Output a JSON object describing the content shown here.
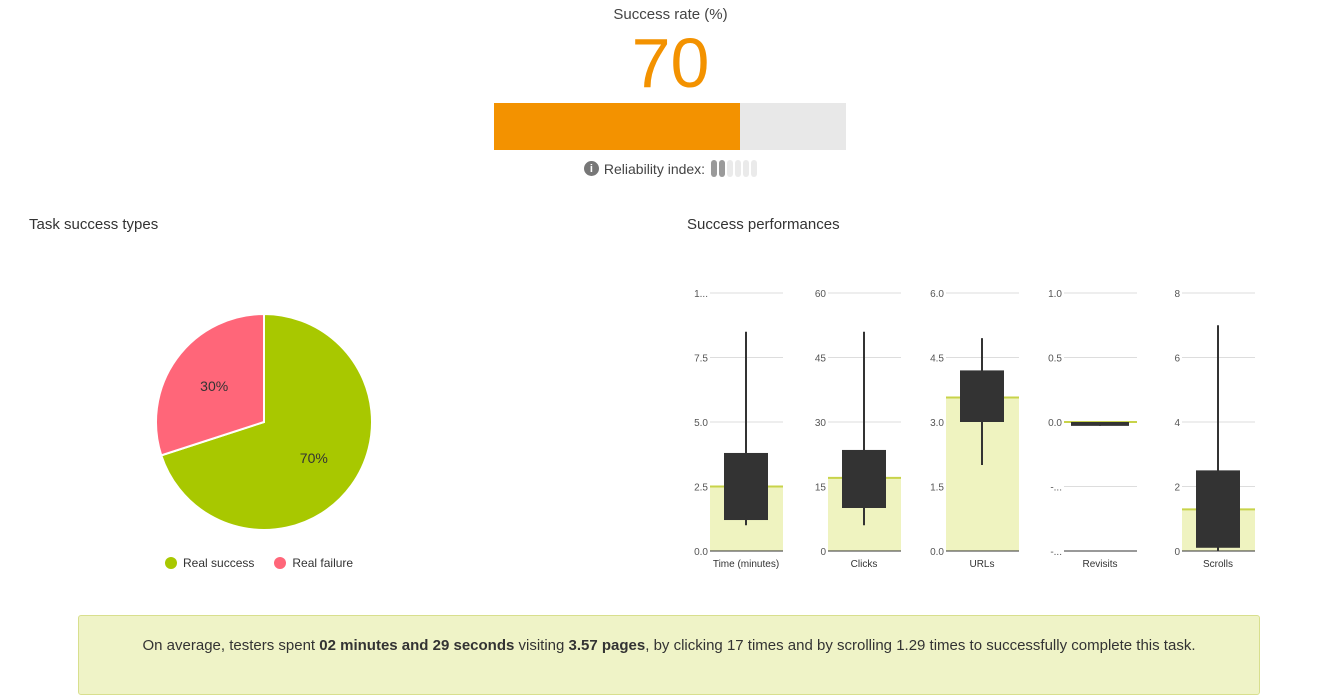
{
  "success_rate": {
    "title": "Success rate (%)",
    "value": "70",
    "fraction": 0.7,
    "color": "#f39200",
    "reliability_label": "Reliability index:",
    "reliability_level": 2,
    "reliability_max": 6
  },
  "task_types": {
    "title": "Task success types",
    "legend": [
      {
        "label": "Real success",
        "color": "#a8c800"
      },
      {
        "label": "Real failure",
        "color": "#ff6679"
      }
    ]
  },
  "performances": {
    "title": "Success performances"
  },
  "summary": {
    "p1": "On average, testers spent ",
    "time": "02 minutes and 29 seconds",
    "p2": " visiting ",
    "pages": "3.57 pages",
    "p3": ", by clicking 17 times and by scrolling 1.29 times to successfully complete this task."
  },
  "chart_data": [
    {
      "type": "pie",
      "title": "",
      "slices": [
        {
          "label": "Real success",
          "value": 70,
          "display": "70%",
          "color": "#a8c800"
        },
        {
          "label": "Real failure",
          "value": 30,
          "display": "30%",
          "color": "#ff6679"
        }
      ]
    },
    {
      "type": "candlestick",
      "title": "Success performances",
      "box_color": "#333333",
      "avg_color": "#eff3c0",
      "avg_line_color": "#c8d34a",
      "panels": [
        {
          "label": "Time (minutes)",
          "ylim": [
            0,
            10
          ],
          "ticks": [
            "0.0",
            "2.5",
            "5.0",
            "7.5",
            "1..."
          ],
          "avg": 2.5,
          "box": [
            1.2,
            3.8
          ],
          "whisker": [
            1.0,
            8.5
          ]
        },
        {
          "label": "Clicks",
          "ylim": [
            0,
            60
          ],
          "ticks": [
            "0",
            "15",
            "30",
            "45",
            "60"
          ],
          "avg": 17,
          "box": [
            10,
            23.5
          ],
          "whisker": [
            6,
            51
          ]
        },
        {
          "label": "URLs",
          "ylim": [
            0,
            6
          ],
          "ticks": [
            "0.0",
            "1.5",
            "3.0",
            "4.5",
            "6.0"
          ],
          "avg": 3.57,
          "box": [
            3.0,
            4.2
          ],
          "whisker": [
            2.0,
            4.95
          ]
        },
        {
          "label": "Revisits",
          "ylim": [
            -1,
            1
          ],
          "ticks": [
            "-...",
            "-...",
            "0.0",
            "0.5",
            "1.0"
          ],
          "avg": 0,
          "box": [
            -0.03,
            0
          ],
          "whisker": [
            -0.03,
            0
          ]
        },
        {
          "label": "Scrolls",
          "ylim": [
            0,
            8
          ],
          "ticks": [
            "0",
            "2",
            "4",
            "6",
            "8"
          ],
          "avg": 1.29,
          "box": [
            0.1,
            2.5
          ],
          "whisker": [
            0,
            7
          ]
        }
      ]
    }
  ]
}
